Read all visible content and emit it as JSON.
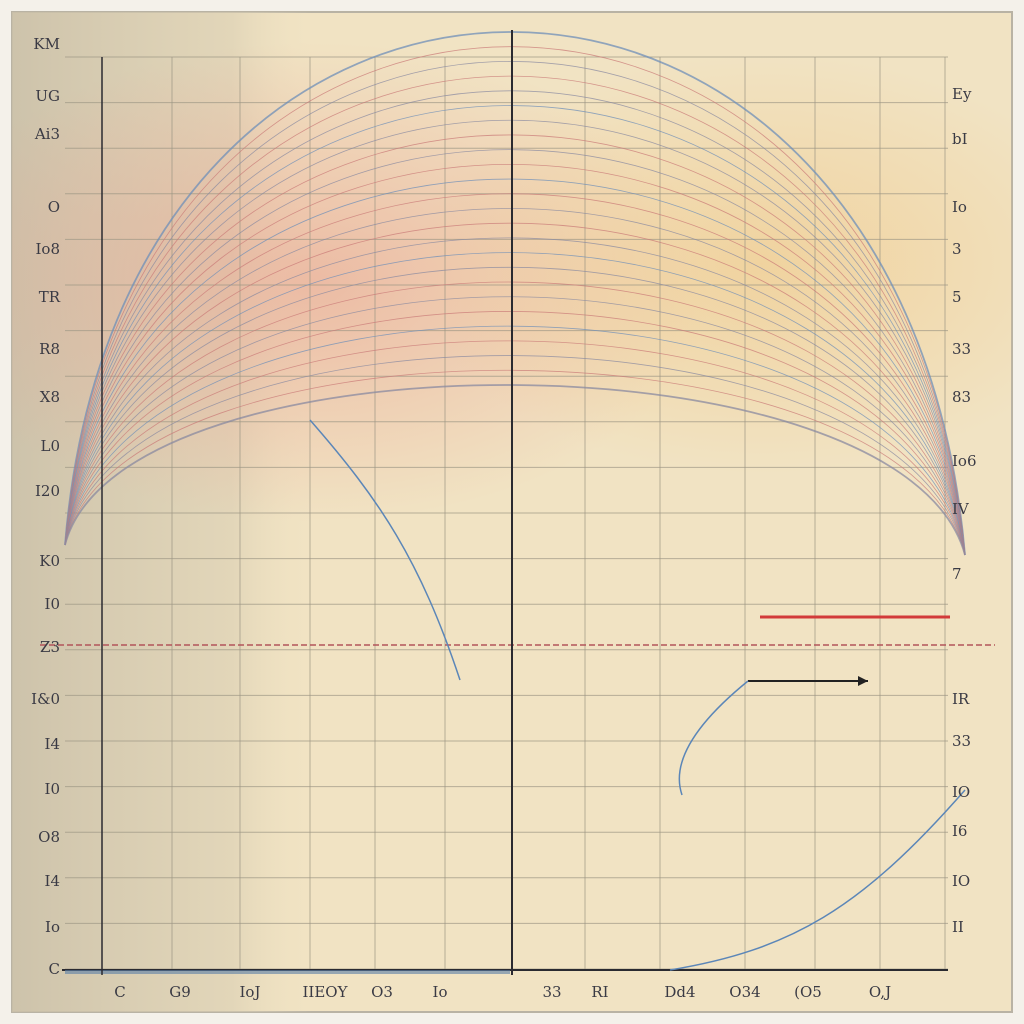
{
  "left_labels": [
    "KM",
    "UG",
    "Ai3",
    "O",
    "Io8",
    "TR",
    "R8",
    "X8",
    "L0",
    "I20",
    "K0",
    "I0",
    "Z3",
    "I&0",
    "I4",
    "I0",
    "O8",
    "I4",
    "Io",
    "C"
  ],
  "right_labels": [
    "Ey",
    "bI",
    "Io",
    "3",
    "5",
    "33",
    "83",
    "Io6",
    "IV",
    "7",
    "IR",
    "33",
    "IO",
    "I6",
    "IO",
    "II"
  ],
  "bottom_labels": [
    "C",
    "G9",
    "IoJ",
    "IIEOY",
    "O3",
    "Io",
    "33",
    "RI",
    "Dd4",
    "O34",
    "(O5",
    "O,J"
  ]
}
